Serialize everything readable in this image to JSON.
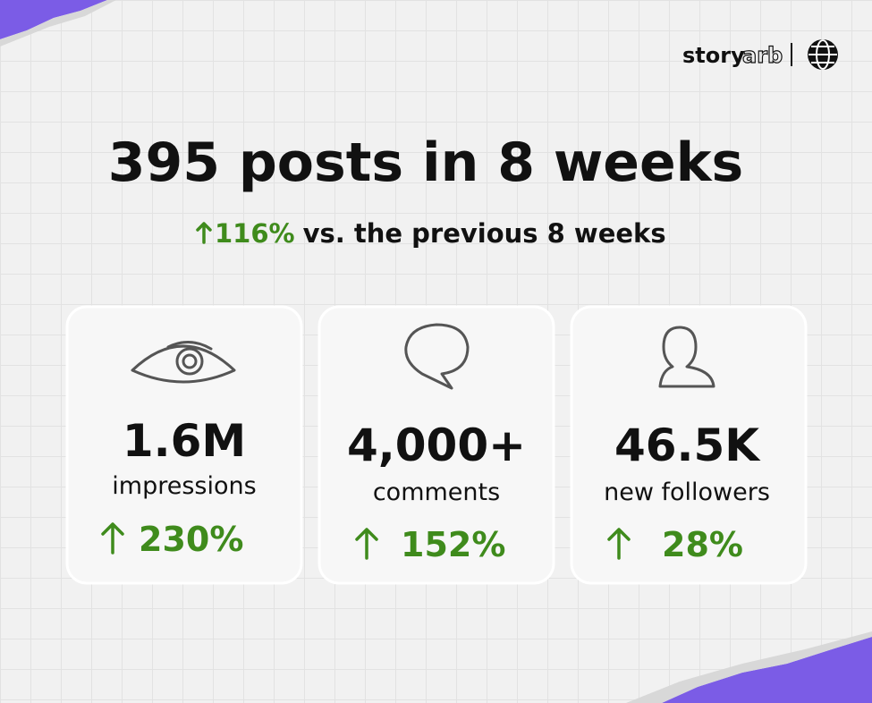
{
  "logo": [
    "story",
    "arb"
  ],
  "title": "395 posts in 8 weeks",
  "subtitle": {
    "change": "116%",
    "text": "vs. the previous 8 weeks"
  },
  "cards": [
    {
      "value": "1.6M",
      "label": "impressions",
      "change": "230%"
    },
    {
      "value": "4,000+",
      "label": "comments",
      "change": "152%"
    },
    {
      "value": "46.5K",
      "label": "new followers",
      "change": "28%"
    }
  ]
}
